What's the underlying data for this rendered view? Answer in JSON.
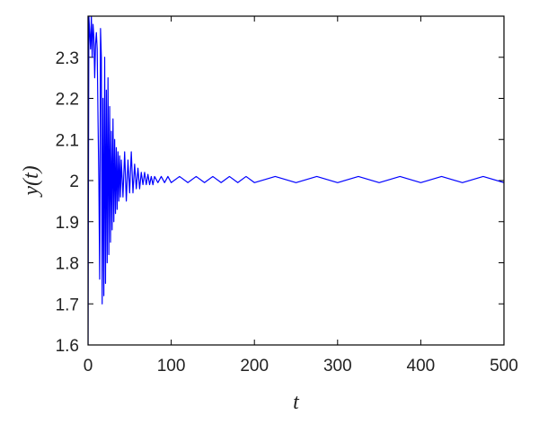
{
  "chart_data": {
    "type": "line",
    "xlabel": "t",
    "ylabel": "y(t)",
    "xlim": [
      0,
      500
    ],
    "ylim": [
      1.6,
      2.4
    ],
    "x_ticks": [
      0,
      100,
      200,
      300,
      400,
      500
    ],
    "x_tick_labels": [
      "0",
      "100",
      "200",
      "300",
      "400",
      "500"
    ],
    "y_ticks": [
      1.6,
      1.7,
      1.8,
      1.9,
      2.0,
      2.1,
      2.2,
      2.3
    ],
    "y_tick_labels": [
      "1.6",
      "1.7",
      "1.8",
      "1.9",
      "2",
      "2.1",
      "2.2",
      "2.3"
    ],
    "grid": false,
    "legend": "none",
    "series": [
      {
        "color": "#0000ff",
        "description_of_shape": "damped oscillation settling near 2",
        "x": [
          0,
          1,
          2,
          3,
          4,
          5,
          6,
          7,
          8,
          9,
          10,
          11,
          12,
          13,
          14,
          15,
          16,
          17,
          18,
          19,
          20,
          21,
          22,
          23,
          24,
          25,
          26,
          27,
          28,
          29,
          30,
          31,
          32,
          33,
          34,
          35,
          36,
          37,
          38,
          39,
          40,
          42,
          44,
          46,
          48,
          50,
          52,
          54,
          56,
          58,
          60,
          62,
          64,
          66,
          68,
          70,
          72,
          74,
          76,
          78,
          80,
          84,
          88,
          92,
          96,
          100,
          110,
          120,
          130,
          140,
          150,
          160,
          170,
          180,
          190,
          200,
          225,
          250,
          275,
          300,
          325,
          350,
          375,
          400,
          425,
          450,
          475,
          500
        ],
        "y": [
          1.6,
          2.4,
          2.36,
          2.32,
          2.4,
          2.3,
          2.38,
          2.35,
          2.25,
          2.33,
          2.36,
          2.32,
          2.15,
          2.0,
          1.76,
          2.37,
          2.3,
          1.7,
          2.2,
          1.72,
          2.3,
          1.75,
          2.22,
          1.8,
          2.25,
          1.82,
          2.18,
          1.85,
          2.12,
          1.88,
          2.15,
          1.9,
          2.1,
          1.92,
          2.08,
          1.93,
          2.07,
          1.95,
          2.06,
          1.96,
          2.05,
          1.96,
          2.07,
          1.95,
          2.05,
          1.97,
          2.07,
          1.97,
          2.04,
          1.98,
          2.03,
          1.98,
          2.02,
          1.99,
          2.02,
          1.99,
          2.015,
          1.99,
          2.01,
          1.99,
          2.01,
          1.995,
          2.01,
          1.995,
          2.01,
          1.995,
          2.01,
          1.995,
          2.01,
          1.995,
          2.01,
          1.995,
          2.01,
          1.995,
          2.01,
          1.995,
          2.01,
          1.995,
          2.01,
          1.995,
          2.01,
          1.995,
          2.01,
          1.995,
          2.01,
          1.995,
          2.01,
          1.995
        ]
      }
    ]
  }
}
